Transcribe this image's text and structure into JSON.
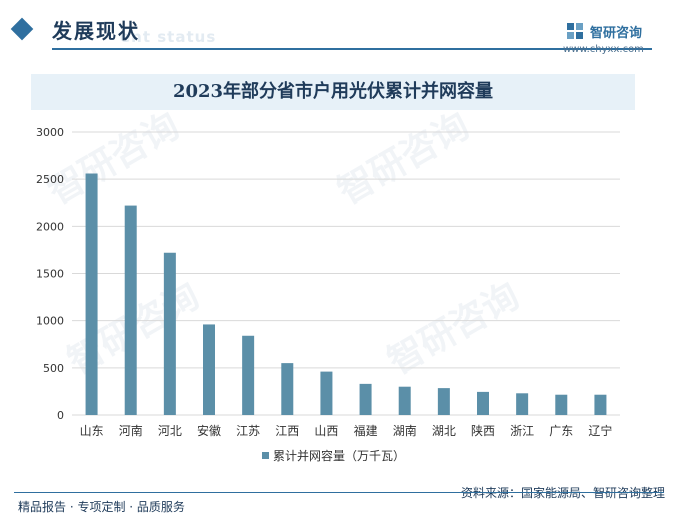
{
  "header": {
    "title": "发展现状",
    "subtitle": "ent status"
  },
  "brand": {
    "name": "智研咨询",
    "url": "www.chyxx.com",
    "logo_icon": "chyxx-logo-icon"
  },
  "watermark_text": "智研咨询",
  "footer": {
    "left": "精品报告 · 专项定制 · 品质服务",
    "source": "资料来源：国家能源局、智研咨询整理"
  },
  "colors": {
    "bar": "#5b8fa8",
    "accent": "#2f6f9f",
    "grid": "#d9d9d9"
  },
  "chart_data": {
    "type": "bar",
    "title": "2023年部分省市户用光伏累计并网容量",
    "categories": [
      "山东",
      "河南",
      "河北",
      "安徽",
      "江苏",
      "江西",
      "山西",
      "福建",
      "湖南",
      "湖北",
      "陕西",
      "浙江",
      "广东",
      "辽宁"
    ],
    "series": [
      {
        "name": "累计并网容量（万千瓦）",
        "values": [
          2560,
          2220,
          1720,
          960,
          840,
          550,
          460,
          330,
          300,
          285,
          245,
          230,
          215,
          215
        ]
      }
    ],
    "ylim": [
      0,
      3000
    ],
    "yticks": [
      0,
      500,
      1000,
      1500,
      2000,
      2500,
      3000
    ],
    "grid": true,
    "legend_position": "bottom"
  }
}
